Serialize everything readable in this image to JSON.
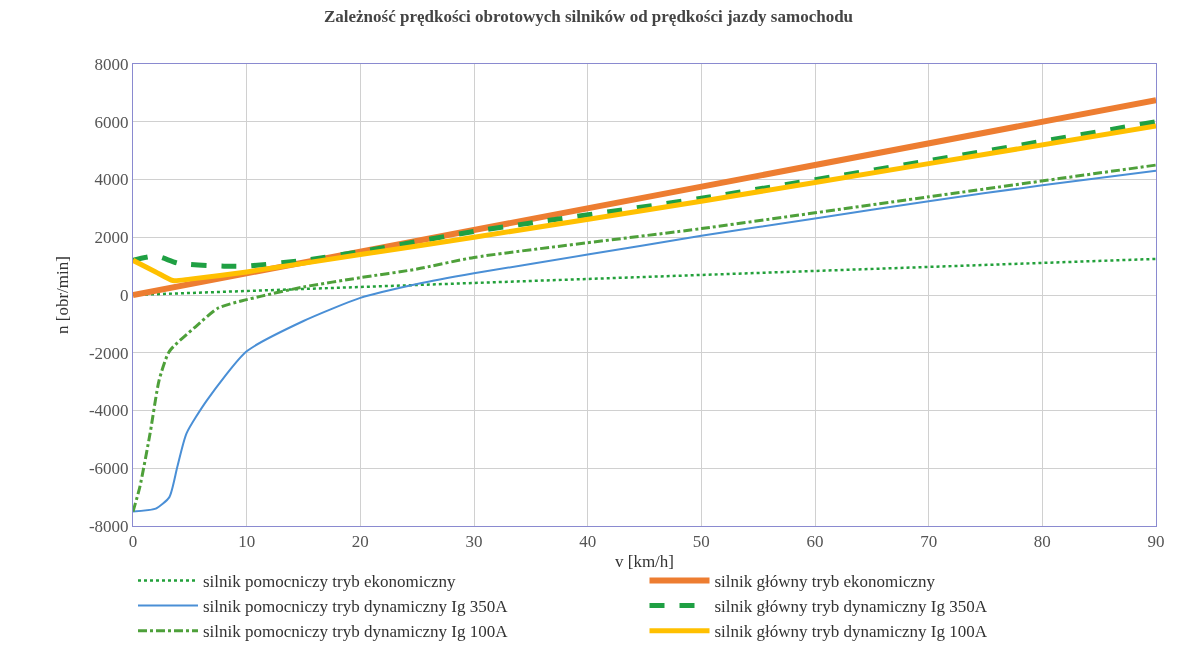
{
  "chart_data": {
    "type": "line",
    "title": "Zależność prędkości obrotowych silników od prędkości jazdy samochodu",
    "xlabel": "v [km/h]",
    "ylabel": "n [obr/min]",
    "xlim": [
      0,
      90
    ],
    "xticks": [
      0,
      10,
      20,
      30,
      40,
      50,
      60,
      70,
      80,
      90
    ],
    "ylim": [
      -8000,
      8000
    ],
    "yticks": [
      -8000,
      -6000,
      -4000,
      -2000,
      0,
      2000,
      4000,
      6000,
      8000
    ],
    "grid": true,
    "legend": "bottom",
    "marker": "none",
    "series": [
      {
        "name": "silnik pomocniczy tryb ekonomiczny",
        "color": "#22a03a",
        "line_style": "dotted",
        "x": [
          0,
          90
        ],
        "values": [
          0,
          1250
        ]
      },
      {
        "name": "silnik główny tryb ekonomiczny",
        "color": "#ed7d31",
        "line_style": "solid",
        "x": [
          0,
          90
        ],
        "values": [
          0,
          6750
        ]
      },
      {
        "name": "silnik pomocniczy tryb dynamiczny Ig 350A",
        "color": "#4a8fd6",
        "line_style": "solid",
        "x": [
          0,
          2,
          3.2,
          3.9,
          4.7,
          6.5,
          10,
          15,
          20,
          25,
          30,
          40,
          50,
          60,
          70,
          80,
          90
        ],
        "values": [
          -7500,
          -7400,
          -7000,
          -5950,
          -4800,
          -3650,
          -1950,
          -900,
          -100,
          380,
          750,
          1400,
          2050,
          2650,
          3250,
          3800,
          4300
        ]
      },
      {
        "name": "silnik główny tryb dynamiczny Ig 350A",
        "color": "#1fa043",
        "line_style": "dashed",
        "x": [
          0,
          2,
          4,
          8,
          10,
          15,
          20,
          30,
          50,
          70,
          90
        ],
        "values": [
          1200,
          1350,
          1100,
          1000,
          1000,
          1200,
          1500,
          2200,
          3350,
          4650,
          6000
        ]
      },
      {
        "name": "silnik pomocniczy tryb dynamiczny Ig 100A",
        "color": "#4ea03a",
        "line_style": "dashdot",
        "x": [
          0,
          0.6,
          1.5,
          2.3,
          3.2,
          5.5,
          7.5,
          9.6,
          11.4,
          15,
          20,
          25,
          30,
          50,
          70,
          90
        ],
        "values": [
          -7500,
          -6650,
          -4800,
          -2950,
          -1950,
          -1100,
          -450,
          -200,
          -30,
          280,
          600,
          900,
          1300,
          2300,
          3400,
          4500
        ]
      },
      {
        "name": "silnik główny tryb dynamiczny Ig 100A",
        "color": "#ffc000",
        "line_style": "solid",
        "x": [
          0,
          2,
          3.5,
          5,
          10,
          20,
          30,
          50,
          70,
          90
        ],
        "values": [
          1200,
          800,
          500,
          550,
          800,
          1400,
          2000,
          3250,
          4550,
          5850
        ]
      }
    ]
  }
}
